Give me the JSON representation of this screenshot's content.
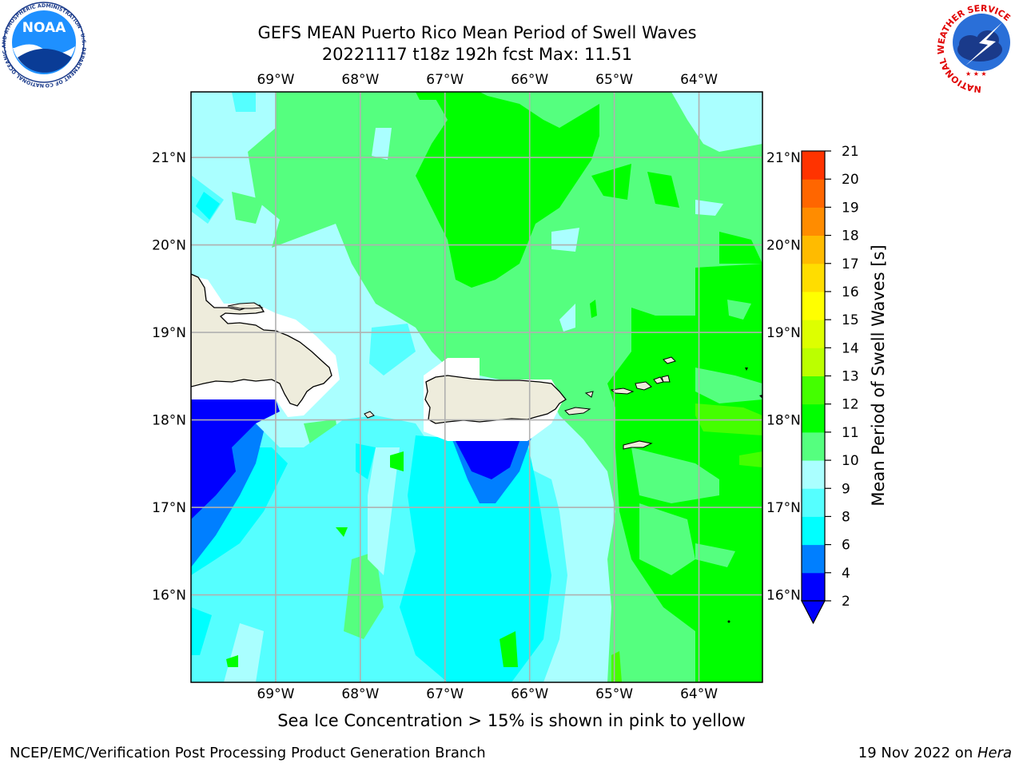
{
  "title": {
    "line1": "GEFS MEAN Puerto Rico Mean Period of Swell Waves",
    "line2": "20221117 t18z 192h fcst   Max: 11.51"
  },
  "map": {
    "lon_labels": [
      "69°W",
      "68°W",
      "67°W",
      "66°W",
      "65°W",
      "64°W"
    ],
    "lat_labels": [
      "21°N",
      "20°N",
      "19°N",
      "18°N",
      "17°N",
      "16°N"
    ],
    "extent": {
      "lon_min": -70.0,
      "lon_max": -63.25,
      "lat_min": 15.0,
      "lat_max": 21.75
    },
    "land_color": "#eeecdc"
  },
  "colorbar": {
    "title": "Mean Period of Swell Waves [s]",
    "levels": [
      "2",
      "4",
      "6",
      "8",
      "9",
      "10",
      "11",
      "12",
      "13",
      "14",
      "15",
      "16",
      "17",
      "18",
      "19",
      "20",
      "21"
    ],
    "colors": [
      "#0000ff",
      "#007fff",
      "#00ffff",
      "#55ffff",
      "#aaffff",
      "#55ff7f",
      "#00ff00",
      "#44ff00",
      "#bbff00",
      "#ddff00",
      "#ffff00",
      "#ffdd00",
      "#ffbb00",
      "#ff8c00",
      "#ff6600",
      "#ff3300",
      "#ff0000"
    ],
    "under_color": "#0000ff"
  },
  "note": "Sea Ice Concentration > 15% is shown in pink to yellow",
  "footer": {
    "left": "NCEP/EMC/Verification Post Processing Product Generation Branch",
    "date": "19 Nov 2022 on ",
    "machine": "Hera"
  },
  "logos": {
    "noaa": "NOAA",
    "noaa_ring": "NATIONAL OCEANIC AND ATMOSPHERIC ADMINISTRATION · U.S. DEPARTMENT OF COMMERCE",
    "nws_ring": "NATIONAL WEATHER SERVICE"
  }
}
